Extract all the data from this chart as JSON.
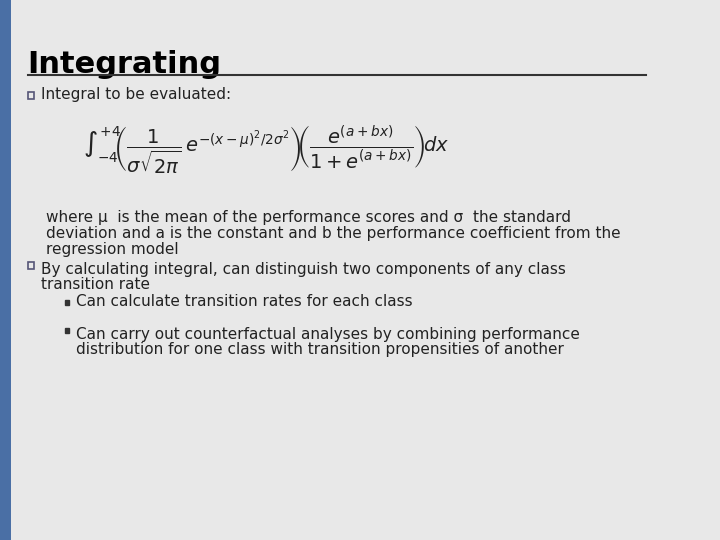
{
  "title": "Integrating",
  "bg_color": "#e8e8e8",
  "left_bar_color": "#4a6fa5",
  "title_color": "#000000",
  "title_fontsize": 22,
  "title_bold": true,
  "separator_color": "#333333",
  "bullet_color": "#555577",
  "text_color": "#222222",
  "bullet1_label": "Integral to be evaluated:",
  "formula_latex": "\\int_{-4}^{+4}\\left(\\frac{1}{\\sigma\\sqrt{2\\pi}}\\,e^{-(x-\\mu)^2/2\\sigma^2}\\right)\\left(\\frac{e^{(a+bx)}}{1+e^{(a+bx)}}\\right)dx",
  "where_text": "where μ  is the mean of the performance scores and σ  the standard\ndeviation and a is the constant and b the performance coefficient from the\nregression model",
  "bullet2_label": "By calculating integral, can distinguish two components of any class\ntransition rate",
  "sub_bullet1": "Can calculate transition rates for each class",
  "sub_bullet2": "Can carry out counterfactual analyses by combining performance\ndistribution for one class with transition propensities of another",
  "body_fontsize": 11,
  "formula_fontsize": 13
}
